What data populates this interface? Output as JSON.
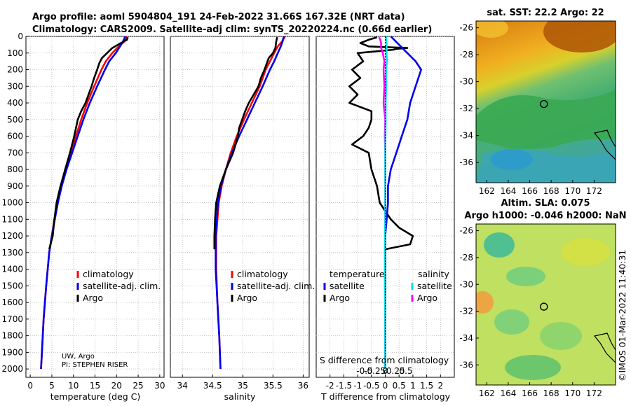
{
  "header": {
    "title_line1": "Argo profile: aoml 5904804_191 24-Feb-2022 31.66S 167.32E (NRT data)",
    "title_line2": "Climatology: CARS2009. Satellite-adj clim: synTS_20220224.nc (0.66d earlier)"
  },
  "watermark": "©IMOS 01-Mar-2022 11:40:31",
  "credits": {
    "line1": "UW, Argo",
    "line2": "PI: STEPHEN RISER"
  },
  "colors": {
    "climatology": "#ff0000",
    "satellite": "#0000ee",
    "argo": "#000000",
    "s_diff": "#ff00ff",
    "s_sat_diff": "#00e0e0"
  },
  "chart_data": [
    {
      "type": "line",
      "name": "temperature-profile",
      "xlabel": "temperature (deg C)",
      "xticks": [
        "0",
        "5",
        "10",
        "15",
        "20",
        "25",
        "30"
      ],
      "xlim": [
        -1,
        31
      ],
      "yticks": [
        "0",
        "100",
        "200",
        "300",
        "400",
        "500",
        "600",
        "700",
        "800",
        "900",
        "1000",
        "1100",
        "1200",
        "1300",
        "1400",
        "1500",
        "1600",
        "1700",
        "1800",
        "1900",
        "2000"
      ],
      "ylim": [
        0,
        2050
      ],
      "legend": [
        "climatology",
        "satellite-adj. clim.",
        "Argo"
      ],
      "series": [
        {
          "name": "climatology",
          "color": "#ff0000",
          "depth": [
            0,
            30,
            60,
            100,
            150,
            200,
            300,
            400,
            500,
            600,
            700,
            800,
            900,
            1000,
            1100,
            1200,
            1300,
            1500,
            1700,
            1900,
            2000
          ],
          "values": [
            22.3,
            21.8,
            20.5,
            19.0,
            17.5,
            16.5,
            14.8,
            13.2,
            11.8,
            10.6,
            9.4,
            8.2,
            7.2,
            6.3,
            5.6,
            5.0,
            4.4,
            3.7,
            3.1,
            2.7,
            2.5
          ]
        },
        {
          "name": "satellite-adj. clim.",
          "color": "#0000ee",
          "depth": [
            0,
            30,
            60,
            100,
            150,
            200,
            300,
            400,
            500,
            600,
            700,
            800,
            900,
            1000,
            1100,
            1200,
            1300,
            1500,
            1700,
            1900,
            2000
          ],
          "values": [
            22.0,
            21.5,
            20.8,
            19.8,
            18.3,
            17.3,
            15.5,
            13.8,
            12.3,
            11.0,
            9.7,
            8.4,
            7.3,
            6.4,
            5.7,
            5.0,
            4.4,
            3.7,
            3.1,
            2.7,
            2.5
          ]
        },
        {
          "name": "Argo",
          "color": "#000000",
          "depth": [
            5,
            20,
            40,
            70,
            100,
            130,
            160,
            200,
            250,
            300,
            350,
            400,
            450,
            500,
            550,
            600,
            700,
            800,
            900,
            1000,
            1100,
            1200,
            1280
          ],
          "values": [
            22.6,
            22.4,
            21.0,
            19.0,
            17.8,
            16.6,
            16.0,
            15.5,
            14.8,
            14.2,
            13.5,
            12.8,
            11.8,
            11.0,
            10.6,
            10.2,
            9.2,
            8.1,
            7.0,
            6.1,
            5.6,
            5.2,
            4.4
          ]
        }
      ]
    },
    {
      "type": "line",
      "name": "salinity-profile",
      "xlabel": "salinity",
      "xticks": [
        "34",
        "34.5",
        "35",
        "35.5",
        "36"
      ],
      "xlim": [
        33.8,
        36.1
      ],
      "ylim": [
        0,
        2050
      ],
      "legend": [
        "climatology",
        "satellite-adj. clim.",
        "Argo"
      ],
      "series": [
        {
          "name": "climatology",
          "color": "#ff0000",
          "depth": [
            0,
            30,
            60,
            100,
            150,
            200,
            300,
            400,
            500,
            600,
            700,
            800,
            900,
            1000,
            1200,
            1400,
            1600,
            1800,
            2000
          ],
          "values": [
            35.7,
            35.65,
            35.58,
            35.52,
            35.45,
            35.38,
            35.28,
            35.15,
            35.02,
            34.9,
            34.8,
            34.72,
            34.65,
            34.6,
            34.56,
            34.56,
            34.58,
            34.61,
            34.63
          ]
        },
        {
          "name": "satellite-adj. clim.",
          "color": "#0000ee",
          "depth": [
            0,
            30,
            60,
            100,
            150,
            200,
            300,
            400,
            500,
            600,
            700,
            800,
            900,
            1000,
            1200,
            1400,
            1600,
            1800,
            2000
          ],
          "values": [
            35.68,
            35.66,
            35.63,
            35.58,
            35.52,
            35.45,
            35.33,
            35.2,
            35.07,
            34.94,
            34.82,
            34.72,
            34.64,
            34.59,
            34.55,
            34.55,
            34.58,
            34.61,
            34.63
          ]
        },
        {
          "name": "Argo",
          "color": "#000000",
          "depth": [
            5,
            20,
            40,
            70,
            100,
            130,
            160,
            200,
            250,
            300,
            350,
            400,
            450,
            500,
            550,
            600,
            700,
            800,
            900,
            1000,
            1100,
            1200,
            1280
          ],
          "values": [
            35.57,
            35.56,
            35.55,
            35.54,
            35.5,
            35.43,
            35.4,
            35.36,
            35.3,
            35.26,
            35.18,
            35.1,
            35.04,
            34.99,
            34.94,
            34.92,
            34.84,
            34.72,
            34.62,
            34.56,
            34.54,
            34.53,
            34.53
          ]
        }
      ]
    },
    {
      "type": "line",
      "name": "difference-profile",
      "xlabel": "T difference from climatology",
      "s_axis_label": "S difference from climatology",
      "xticks": [
        "-2",
        "-1.5",
        "-1",
        "-0.5",
        "0",
        "0.5",
        "1",
        "1.5",
        "2"
      ],
      "xlim": [
        -2.5,
        2.5
      ],
      "s_ticks": [
        "-0.5",
        "-0.25",
        "0",
        "0.25",
        "0.5"
      ],
      "legend_temperature": {
        "header": "temperature",
        "items": [
          "satellite",
          "Argo"
        ]
      },
      "legend_salinity": {
        "header": "salinity",
        "items": [
          "satellite",
          "Argo"
        ]
      },
      "series": [
        {
          "name": "T Argo - clim",
          "color": "#000000",
          "depth": [
            5,
            20,
            40,
            60,
            70,
            75,
            80,
            100,
            150,
            200,
            250,
            300,
            350,
            400,
            450,
            500,
            550,
            600,
            650,
            700,
            800,
            900,
            1000,
            1100,
            1150,
            1200,
            1250,
            1280
          ],
          "values": [
            -0.3,
            -0.6,
            -0.9,
            -0.6,
            0.8,
            0.4,
            0.3,
            -1.0,
            -0.8,
            -1.2,
            -0.9,
            -1.3,
            -1.0,
            -1.3,
            -0.5,
            -0.5,
            -0.6,
            -0.8,
            -1.2,
            -0.6,
            -0.5,
            -0.3,
            -0.2,
            0.2,
            0.5,
            1.0,
            0.9,
            0.0
          ]
        },
        {
          "name": "T sat - clim",
          "color": "#0000ee",
          "depth": [
            0,
            50,
            100,
            150,
            200,
            300,
            400,
            500,
            600,
            700,
            800,
            900,
            1000,
            1100,
            1200,
            1400,
            1600,
            1800,
            2000
          ],
          "values": [
            0.2,
            0.5,
            0.8,
            1.1,
            1.3,
            1.1,
            0.9,
            0.8,
            0.6,
            0.4,
            0.2,
            0.1,
            0.1,
            0.05,
            0,
            0,
            0,
            0,
            0
          ]
        },
        {
          "name": "S Argo - clim",
          "color": "#ff00ff",
          "depth": [
            5,
            20,
            40,
            70,
            100,
            150,
            200,
            300,
            400,
            500,
            600,
            700,
            800,
            900,
            1000,
            1100,
            1200,
            1280
          ],
          "values": [
            -0.15,
            -0.12,
            -0.1,
            -0.1,
            -0.06,
            -0.02,
            -0.04,
            -0.02,
            -0.04,
            0.0,
            -0.01,
            0.0,
            0.0,
            0.0,
            0.0,
            0.0,
            0.0,
            0.0
          ]
        },
        {
          "name": "S sat - clim",
          "color": "#00e0e0",
          "depth": [
            0,
            50,
            100,
            150,
            200,
            300,
            400,
            500,
            700,
            900,
            1100,
            1300,
            1500,
            1700,
            2000
          ],
          "values": [
            0.02,
            0.03,
            0.03,
            0.04,
            0.02,
            0.02,
            0.01,
            0.01,
            0,
            0,
            0,
            -0.01,
            -0.01,
            0,
            0
          ]
        }
      ]
    },
    {
      "type": "heatmap",
      "name": "sst-map",
      "title": "sat. SST: 22.2 Argo: 22",
      "xticks": [
        "162",
        "164",
        "166",
        "168",
        "170",
        "172"
      ],
      "yticks": [
        "-26",
        "-28",
        "-30",
        "-32",
        "-34",
        "-36"
      ],
      "xlim": [
        161,
        174
      ],
      "ylim": [
        -37.5,
        -25.5
      ],
      "float_position": {
        "lon": 167.32,
        "lat": -31.66
      }
    },
    {
      "type": "heatmap",
      "name": "sla-map",
      "title_line1": "Altim. SLA: 0.075",
      "title_line2": "Argo h1000: -0.046 h2000: NaN",
      "xticks": [
        "162",
        "164",
        "166",
        "168",
        "170",
        "172"
      ],
      "yticks": [
        "-26",
        "-28",
        "-30",
        "-32",
        "-34",
        "-36"
      ],
      "xlim": [
        161,
        174
      ],
      "ylim": [
        -37.5,
        -25.5
      ],
      "float_position": {
        "lon": 167.32,
        "lat": -31.66
      }
    }
  ]
}
